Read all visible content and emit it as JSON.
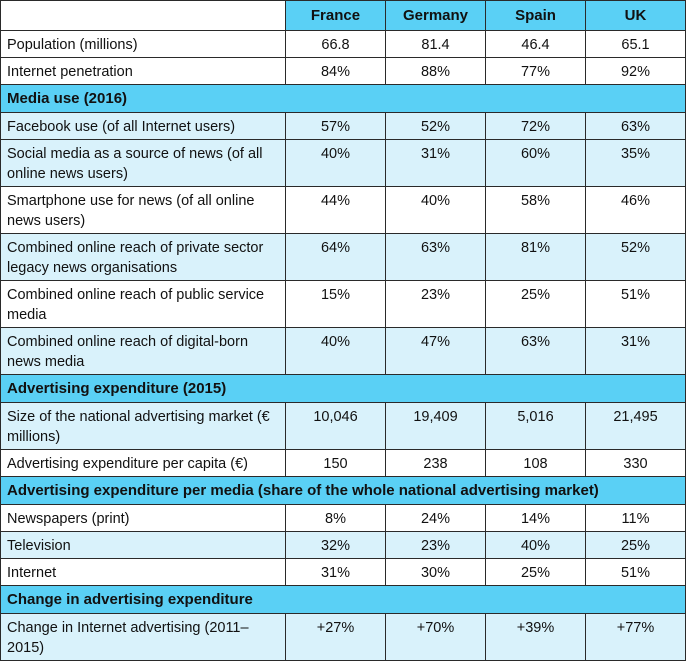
{
  "header": {
    "corner": "",
    "countries": [
      "France",
      "Germany",
      "Spain",
      "UK"
    ]
  },
  "general": [
    {
      "label": "Population (millions)",
      "values": [
        "66.8",
        "81.4",
        "46.4",
        "65.1"
      ]
    },
    {
      "label": "Internet penetration",
      "values": [
        "84%",
        "88%",
        "77%",
        "92%"
      ]
    }
  ],
  "media_use": {
    "title": "Media use (2016)",
    "rows": [
      {
        "label": "Facebook use (of all Internet users)",
        "values": [
          "57%",
          "52%",
          "72%",
          "63%"
        ]
      },
      {
        "label": "Social media as a source of news (of all online news users)",
        "values": [
          "40%",
          "31%",
          "60%",
          "35%"
        ]
      },
      {
        "label": "Smartphone use for news (of all online news users)",
        "values": [
          "44%",
          "40%",
          "58%",
          "46%"
        ]
      },
      {
        "label": "Combined online reach of private sector legacy news organisations",
        "values": [
          "64%",
          "63%",
          "81%",
          "52%"
        ]
      },
      {
        "label": "Combined online reach of public service media",
        "values": [
          "15%",
          "23%",
          "25%",
          "51%"
        ]
      },
      {
        "label": "Combined online reach of digital-born news media",
        "values": [
          "40%",
          "47%",
          "63%",
          "31%"
        ]
      }
    ]
  },
  "ad_expenditure": {
    "title": "Advertising expenditure (2015)",
    "rows": [
      {
        "label": "Size of the national advertising market (€ millions)",
        "values": [
          "10,046",
          "19,409",
          "5,016",
          "21,495"
        ]
      },
      {
        "label": "Advertising expenditure per capita (€)",
        "values": [
          "150",
          "238",
          "108",
          "330"
        ]
      }
    ]
  },
  "ad_per_media": {
    "title": "Advertising expenditure per media (share of the whole national advertising market)",
    "rows": [
      {
        "label": "Newspapers (print)",
        "values": [
          "8%",
          "24%",
          "14%",
          "11%"
        ]
      },
      {
        "label": "Television",
        "values": [
          "32%",
          "23%",
          "40%",
          "25%"
        ]
      },
      {
        "label": "Internet",
        "values": [
          "31%",
          "30%",
          "25%",
          "51%"
        ]
      }
    ]
  },
  "ad_change": {
    "title": "Change in advertising expenditure",
    "rows": [
      {
        "label": "Change in Internet advertising (2011–2015)",
        "values": [
          "+27%",
          "+70%",
          "+39%",
          "+77%"
        ]
      }
    ]
  },
  "colors": {
    "header_bg": "#5ad0f5",
    "tint_bg": "#d9f2fb",
    "border": "#2a2a2a"
  }
}
